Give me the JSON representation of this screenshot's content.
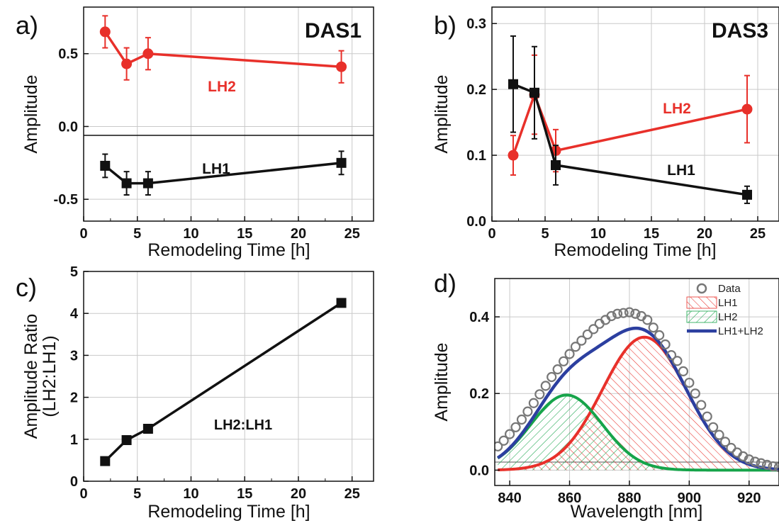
{
  "colors": {
    "red": "#e8302a",
    "black": "#111111",
    "blue": "#2c3fa0",
    "green": "#16a44a",
    "grid": "#c9c9c9",
    "marker_gray": "#777777"
  },
  "chart_data": [
    {
      "id": "a",
      "panel_label": "a)",
      "type": "line",
      "xlabel": "Remodeling Time [h]",
      "ylabel": "Amplitude",
      "xlim": [
        0,
        27
      ],
      "ylim": [
        -0.65,
        0.82
      ],
      "xticks": [
        0,
        5,
        10,
        15,
        20,
        25
      ],
      "xtick_labels": [
        "0",
        "5",
        "10",
        "15",
        "20",
        "25"
      ],
      "yticks": [
        -0.5,
        0.0,
        0.5
      ],
      "ytick_labels": [
        "-0.5",
        "0.0",
        "0.5"
      ],
      "grid": true,
      "zero_line": true,
      "title_annotation": "DAS1",
      "series": [
        {
          "name": "LH2",
          "color": "red",
          "marker": "circle",
          "x": [
            2,
            4,
            6,
            24
          ],
          "y": [
            0.65,
            0.43,
            0.5,
            0.41
          ],
          "err": [
            0.11,
            0.11,
            0.11,
            0.11
          ]
        },
        {
          "name": "LH1",
          "color": "black",
          "marker": "square",
          "x": [
            2,
            4,
            6,
            24
          ],
          "y": [
            -0.27,
            -0.39,
            -0.39,
            -0.25
          ],
          "err": [
            0.08,
            0.08,
            0.08,
            0.08
          ]
        }
      ]
    },
    {
      "id": "b",
      "panel_label": "b)",
      "type": "line",
      "xlabel": "Remodeling Time [h]",
      "ylabel": "Amplitude",
      "xlim": [
        0,
        27
      ],
      "ylim": [
        0,
        0.325
      ],
      "xticks": [
        0,
        5,
        10,
        15,
        20,
        25
      ],
      "xtick_labels": [
        "0",
        "5",
        "10",
        "15",
        "20",
        "25"
      ],
      "yticks": [
        0.0,
        0.1,
        0.2,
        0.3
      ],
      "ytick_labels": [
        "0.0",
        "0.1",
        "0.2",
        "0.3"
      ],
      "grid": true,
      "title_annotation": "DAS3",
      "series": [
        {
          "name": "LH2",
          "color": "red",
          "marker": "circle",
          "x": [
            2,
            4,
            6,
            24
          ],
          "y": [
            0.1,
            0.192,
            0.107,
            0.17
          ],
          "err": [
            0.03,
            0.06,
            0.032,
            0.051
          ]
        },
        {
          "name": "LH1",
          "color": "black",
          "marker": "square",
          "x": [
            2,
            4,
            6,
            24
          ],
          "y": [
            0.208,
            0.195,
            0.085,
            0.04
          ],
          "err": [
            0.073,
            0.07,
            0.03,
            0.013
          ]
        }
      ]
    },
    {
      "id": "c",
      "panel_label": "c)",
      "type": "line",
      "xlabel": "Remodeling Time [h]",
      "ylabel": "Amplitude Ratio",
      "ylabel2": "(LH2:LH1)",
      "xlim": [
        0,
        27
      ],
      "ylim": [
        0,
        5
      ],
      "xticks": [
        0,
        5,
        10,
        15,
        20,
        25
      ],
      "xtick_labels": [
        "0",
        "5",
        "10",
        "15",
        "20",
        "25"
      ],
      "yticks": [
        0,
        1,
        2,
        3,
        4,
        5
      ],
      "ytick_labels": [
        "0",
        "1",
        "2",
        "3",
        "4",
        "5"
      ],
      "grid": true,
      "series": [
        {
          "name": "LH2:LH1",
          "color": "black",
          "marker": "square",
          "x": [
            2,
            4,
            6,
            24
          ],
          "y": [
            0.48,
            0.98,
            1.25,
            4.25
          ]
        }
      ]
    },
    {
      "id": "d",
      "panel_label": "d)",
      "type": "line",
      "xlabel": "Wavelength [nm]",
      "ylabel": "Amplitude",
      "xlim": [
        835,
        930
      ],
      "ylim": [
        -0.04,
        0.5
      ],
      "xticks": [
        840,
        860,
        880,
        900,
        920
      ],
      "xtick_labels": [
        "840",
        "860",
        "880",
        "900",
        "920"
      ],
      "yticks": [
        0.0,
        0.2,
        0.4
      ],
      "ytick_labels": [
        "0.0",
        "0.2",
        "0.4"
      ],
      "grid": true,
      "legend_position": "top-right",
      "legend": [
        {
          "label": "Data",
          "kind": "circle",
          "color": "marker_gray"
        },
        {
          "label": "LH1",
          "kind": "hatch",
          "color": "red"
        },
        {
          "label": "LH2",
          "kind": "hatch",
          "color": "green"
        },
        {
          "label": "LH1+LH2",
          "kind": "line",
          "color": "blue"
        }
      ],
      "components": [
        {
          "name": "LH1",
          "color": "red",
          "amplitude": 0.347,
          "center": 885,
          "sigma": 14
        },
        {
          "name": "LH2",
          "color": "green",
          "amplitude": 0.196,
          "center": 859,
          "sigma": 12
        }
      ],
      "data_x": [
        836,
        838,
        840,
        842,
        844,
        846,
        848,
        850,
        852,
        854,
        856,
        858,
        860,
        862,
        864,
        866,
        868,
        870,
        872,
        874,
        876,
        878,
        880,
        882,
        884,
        886,
        888,
        890,
        892,
        894,
        896,
        898,
        900,
        902,
        904,
        906,
        908,
        910,
        912,
        914,
        916,
        918,
        920,
        922,
        924,
        926,
        928,
        930
      ],
      "data_y": [
        0.062,
        0.077,
        0.094,
        0.112,
        0.132,
        0.153,
        0.175,
        0.198,
        0.22,
        0.243,
        0.263,
        0.284,
        0.303,
        0.322,
        0.338,
        0.354,
        0.368,
        0.382,
        0.392,
        0.402,
        0.408,
        0.41,
        0.412,
        0.408,
        0.402,
        0.392,
        0.372,
        0.352,
        0.328,
        0.3,
        0.285,
        0.258,
        0.228,
        0.2,
        0.17,
        0.14,
        0.112,
        0.092,
        0.074,
        0.058,
        0.046,
        0.036,
        0.028,
        0.022,
        0.018,
        0.014,
        0.01,
        0.008
      ]
    }
  ]
}
